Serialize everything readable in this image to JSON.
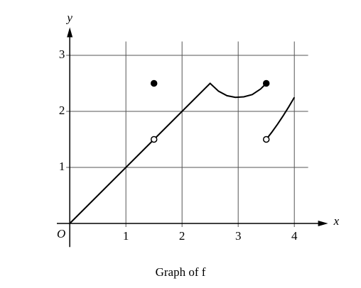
{
  "chart_data": {
    "type": "line",
    "xlabel": "x",
    "ylabel": "y",
    "origin_label": "O",
    "caption": "Graph of f",
    "xlim": [
      -0.23,
      4.6
    ],
    "ylim": [
      -0.42,
      3.5
    ],
    "xticks": [
      1,
      2,
      3,
      4
    ],
    "yticks": [
      1,
      2,
      3
    ],
    "grid": true,
    "series": [
      {
        "x": [
          0,
          2.5,
          2.65,
          2.8,
          2.95,
          3.1,
          3.25,
          3.4,
          3.5,
          null,
          3.5,
          3.6,
          3.7,
          3.8,
          3.9,
          4
        ],
        "values": [
          0,
          2.5,
          2.36,
          2.28,
          2.25,
          2.26,
          2.3,
          2.4,
          2.5,
          null,
          1.5,
          1.63,
          1.77,
          1.92,
          2.08,
          2.25
        ],
        "color": "#000000"
      }
    ],
    "points": [
      {
        "x": [
          1.5,
          3.5
        ],
        "values": [
          2.5,
          2.5
        ],
        "marker": "filled",
        "color": "#000000"
      },
      {
        "x": [
          1.5,
          3.5
        ],
        "values": [
          1.5,
          1.5
        ],
        "marker": "open",
        "color": "#000000"
      }
    ]
  }
}
